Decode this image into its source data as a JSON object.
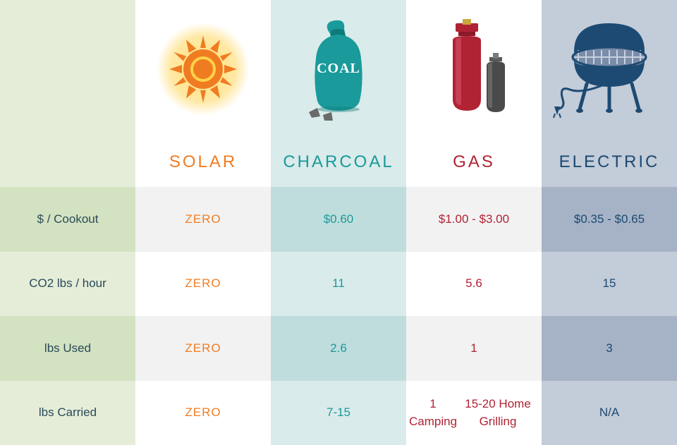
{
  "categories": [
    "solar",
    "charcoal",
    "gas",
    "electric"
  ],
  "headers": {
    "solar": {
      "label": "SOLAR",
      "color": "#f07c22"
    },
    "charcoal": {
      "label": "CHARCOAL",
      "color": "#1a9a9a"
    },
    "gas": {
      "label": "GAS",
      "color": "#b02334"
    },
    "electric": {
      "label": "ELECTRIC",
      "color": "#1c4a72"
    }
  },
  "rows": [
    {
      "key": "cost",
      "label": "$ / Cookout"
    },
    {
      "key": "co2",
      "label": "CO2 lbs / hour"
    },
    {
      "key": "used",
      "label": "lbs Used"
    },
    {
      "key": "carried",
      "label": "lbs Carried"
    }
  ],
  "data": {
    "cost": {
      "solar": "ZERO",
      "charcoal": "$0.60",
      "gas": "$1.00 - $3.00",
      "electric": "$0.35 - $0.65"
    },
    "co2": {
      "solar": "ZERO",
      "charcoal": "11",
      "gas": "5.6",
      "electric": "15"
    },
    "used": {
      "solar": "ZERO",
      "charcoal": "2.6",
      "gas": "1",
      "electric": "3"
    },
    "carried": {
      "solar": "ZERO",
      "charcoal": "7-15",
      "gas": "1 Camping\n15-20 Home Grilling",
      "electric": "N/A"
    }
  },
  "column_bg": {
    "labels": {
      "even": "#d3e2c1",
      "odd": "#e5edd8"
    },
    "solar": {
      "even": "#f2f2f2",
      "odd": "#ffffff"
    },
    "charcoal": {
      "even": "#bfdddc",
      "odd": "#d9ebea"
    },
    "gas": {
      "even": "#f2f2f2",
      "odd": "#ffffff"
    },
    "electric": {
      "even": "#a6b3c6",
      "odd": "#c3ccd9"
    }
  },
  "icons": {
    "coal_label": "COAL"
  }
}
